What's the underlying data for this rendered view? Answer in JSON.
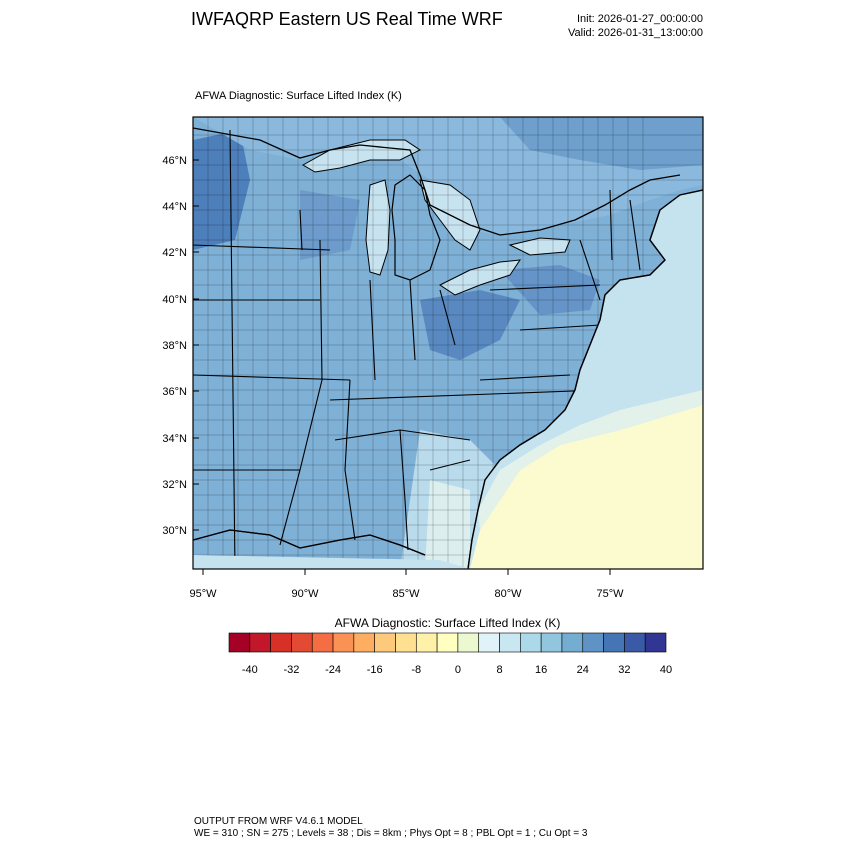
{
  "header": {
    "title": "IWFAQRP Eastern US Real Time WRF",
    "init": "Init: 2026-01-27_00:00:00",
    "valid": "Valid: 2026-01-31_13:00:00"
  },
  "map": {
    "title": "AFWA Diagnostic: Surface Lifted Index   (K)",
    "lat_labels": [
      "46°N",
      "44°N",
      "42°N",
      "40°N",
      "38°N",
      "36°N",
      "34°N",
      "32°N",
      "30°N"
    ],
    "lon_labels": [
      "95°W",
      "90°W",
      "85°W",
      "80°W",
      "75°W"
    ],
    "field_description_colors": {
      "strong_blue": "#4a78b4",
      "mid_blue": "#7aaad2",
      "light_blue": "#b4d6ea",
      "pale_cyan": "#d6ecf3",
      "pale_yellow": "#fbfbcf"
    }
  },
  "colorbar": {
    "title": "AFWA Diagnostic: Surface Lifted Index  (K)",
    "tick_labels": [
      "-40",
      "-32",
      "-24",
      "-16",
      "-8",
      "0",
      "8",
      "16",
      "24",
      "32",
      "40"
    ],
    "colors": [
      "#a50026",
      "#c2172a",
      "#d73027",
      "#e34a33",
      "#f46d43",
      "#f99254",
      "#fdae61",
      "#fdc97b",
      "#fee090",
      "#fff1a8",
      "#ffffbf",
      "#ecf8d0",
      "#e0f3f8",
      "#c9e7f1",
      "#abd9e9",
      "#92c5de",
      "#74add1",
      "#5f93c5",
      "#4575b4",
      "#3a5aa7",
      "#313695"
    ]
  },
  "footer": {
    "line1": "OUTPUT FROM WRF V4.6.1 MODEL",
    "line2": "WE = 310 ; SN = 275 ; Levels = 38 ; Dis = 8km ; Phys Opt = 8 ; PBL Opt = 1 ; Cu Opt = 3"
  }
}
